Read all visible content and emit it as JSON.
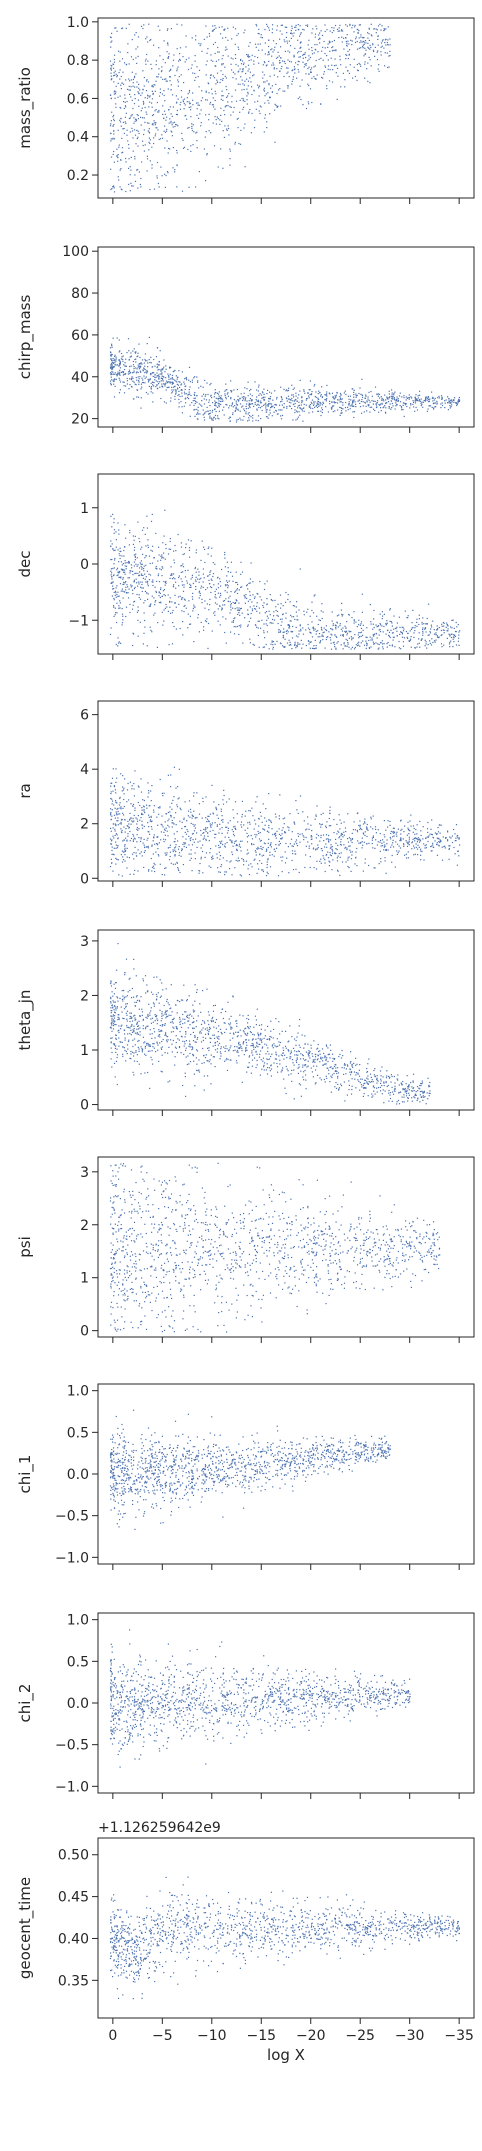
{
  "chart_data": {
    "type": "scatter",
    "title": "",
    "xlabel": "log X",
    "x_ticks": [
      0,
      -5,
      -10,
      -15,
      -20,
      -25,
      -30,
      -35
    ],
    "x_tick_labels": [
      "0",
      "−5",
      "−10",
      "−15",
      "−20",
      "−25",
      "−30",
      "−35"
    ],
    "xlim": [
      1.5,
      -36.5
    ],
    "point_color": "#4c72b0",
    "shared_x": true,
    "panels": [
      {
        "ylabel": "mass_ratio",
        "ylim": [
          0.08,
          1.02
        ],
        "yticks": [
          0.2,
          0.4,
          0.6,
          0.8,
          1.0
        ],
        "ytick_labels": [
          "0.2",
          "0.4",
          "0.6",
          "0.8",
          "1.0"
        ],
        "trend": [
          [
            0,
            0.55
          ],
          [
            -5,
            0.55
          ],
          [
            -10,
            0.65
          ],
          [
            -15,
            0.75
          ],
          [
            -20,
            0.82
          ],
          [
            -25,
            0.88
          ],
          [
            -28,
            0.9
          ]
        ],
        "spread": 0.25
      },
      {
        "ylabel": "chirp_mass",
        "ylim": [
          16,
          102
        ],
        "yticks": [
          20,
          40,
          60,
          80,
          100
        ],
        "ytick_labels": [
          "20",
          "40",
          "60",
          "80",
          "100"
        ],
        "trend": [
          [
            0,
            45
          ],
          [
            -5,
            40
          ],
          [
            -9,
            28
          ],
          [
            -13,
            27
          ],
          [
            -20,
            28.5
          ],
          [
            -30,
            28.5
          ],
          [
            -35,
            28.5
          ]
        ],
        "spread": 6
      },
      {
        "ylabel": "dec",
        "ylim": [
          -1.6,
          1.6
        ],
        "yticks": [
          -1,
          0,
          1
        ],
        "ytick_labels": [
          "−1",
          "0",
          "1"
        ],
        "trend": [
          [
            0,
            -0.2
          ],
          [
            -5,
            -0.3
          ],
          [
            -10,
            -0.5
          ],
          [
            -13,
            -0.6
          ],
          [
            -15,
            -1.0
          ],
          [
            -20,
            -1.2
          ],
          [
            -30,
            -1.22
          ],
          [
            -35,
            -1.22
          ]
        ],
        "spread": 0.5
      },
      {
        "ylabel": "ra",
        "ylim": [
          -0.1,
          6.5
        ],
        "yticks": [
          0,
          2,
          4,
          6
        ],
        "ytick_labels": [
          "0",
          "2",
          "4",
          "6"
        ],
        "trend": [
          [
            0,
            2.0
          ],
          [
            -5,
            1.8
          ],
          [
            -10,
            1.5
          ],
          [
            -15,
            1.4
          ],
          [
            -20,
            1.4
          ],
          [
            -30,
            1.4
          ],
          [
            -35,
            1.4
          ]
        ],
        "spread": 1.0
      },
      {
        "ylabel": "theta_jn",
        "ylim": [
          -0.1,
          3.2
        ],
        "yticks": [
          0,
          1,
          2,
          3
        ],
        "ytick_labels": [
          "0",
          "1",
          "2",
          "3"
        ],
        "trend": [
          [
            0,
            1.5
          ],
          [
            -5,
            1.4
          ],
          [
            -10,
            1.3
          ],
          [
            -15,
            1.1
          ],
          [
            -20,
            0.8
          ],
          [
            -25,
            0.5
          ],
          [
            -28,
            0.3
          ],
          [
            -32,
            0.2
          ]
        ],
        "spread": 0.45
      },
      {
        "ylabel": "psi",
        "ylim": [
          -0.12,
          3.28
        ],
        "yticks": [
          0,
          1,
          2,
          3
        ],
        "ytick_labels": [
          "0",
          "1",
          "2",
          "3"
        ],
        "trend": [
          [
            0,
            1.57
          ],
          [
            -27,
            1.57
          ],
          [
            -33,
            1.57
          ]
        ],
        "spread": 0.9
      },
      {
        "ylabel": "chi_1",
        "ylim": [
          -1.08,
          1.08
        ],
        "yticks": [
          -1.0,
          -0.5,
          0.0,
          0.5,
          1.0
        ],
        "ytick_labels": [
          "−1.0",
          "−0.5",
          "0.0",
          "0.5",
          "1.0"
        ],
        "trend": [
          [
            0,
            0.02
          ],
          [
            -10,
            0.05
          ],
          [
            -20,
            0.2
          ],
          [
            -25,
            0.3
          ],
          [
            -28,
            0.3
          ]
        ],
        "spread": 0.25
      },
      {
        "ylabel": "chi_2",
        "ylim": [
          -1.08,
          1.08
        ],
        "yticks": [
          -1.0,
          -0.5,
          0.0,
          0.5,
          1.0
        ],
        "ytick_labels": [
          "−1.0",
          "−0.5",
          "0.0",
          "0.5",
          "1.0"
        ],
        "trend": [
          [
            0,
            0.0
          ],
          [
            -10,
            0.02
          ],
          [
            -20,
            0.08
          ],
          [
            -27,
            0.1
          ],
          [
            -30,
            0.1
          ]
        ],
        "spread": 0.3
      },
      {
        "ylabel": "geocent_time",
        "offset_text": "+1.126259642e9",
        "ylim": [
          0.305,
          0.52
        ],
        "yticks": [
          0.35,
          0.4,
          0.45,
          0.5
        ],
        "ytick_labels": [
          "0.35",
          "0.40",
          "0.45",
          "0.50"
        ],
        "trend": [
          [
            0,
            0.4
          ],
          [
            -2,
            0.38
          ],
          [
            -5,
            0.41
          ],
          [
            -10,
            0.415
          ],
          [
            -15,
            0.413
          ],
          [
            -20,
            0.414
          ],
          [
            -30,
            0.414
          ],
          [
            -35,
            0.414
          ]
        ],
        "spread": 0.025
      }
    ]
  }
}
